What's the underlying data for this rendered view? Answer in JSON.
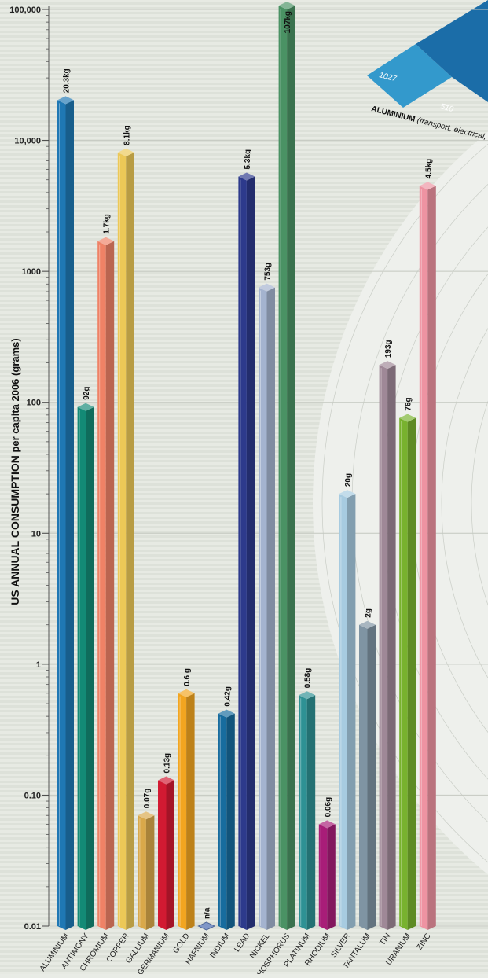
{
  "chart_data": {
    "type": "bar",
    "title": "",
    "ylabel": {
      "bold": "US ANNUAL CONSUMPTION",
      "rest": " per capita 2006 (grams)"
    },
    "xlabel": "",
    "yscale": "log",
    "ylim": [
      0.01,
      100000
    ],
    "yticks": [
      {
        "v": 100000,
        "label": "100,000"
      },
      {
        "v": 10000,
        "label": "10,000"
      },
      {
        "v": 1000,
        "label": "1000"
      },
      {
        "v": 100,
        "label": "100"
      },
      {
        "v": 10,
        "label": "10"
      },
      {
        "v": 1,
        "label": "1"
      },
      {
        "v": 0.1,
        "label": "0.10"
      },
      {
        "v": 0.01,
        "label": "0.01"
      }
    ],
    "grid": true,
    "bars": [
      {
        "category": "ALUMINIUM",
        "value": 20300,
        "label": "20.3kg",
        "color": "#1f78b4"
      },
      {
        "category": "ANTIMONY",
        "value": 92,
        "label": "92g",
        "color": "#138a76"
      },
      {
        "category": "CHROMIUM",
        "value": 1700,
        "label": "1.7kg",
        "color": "#ef8266"
      },
      {
        "category": "COPPER",
        "value": 8100,
        "label": "8.1kg",
        "color": "#ecc857"
      },
      {
        "category": "GALLIUM",
        "value": 0.07,
        "label": "0.07g",
        "color": "#d9a84a"
      },
      {
        "category": "GERMANIUM",
        "value": 0.13,
        "label": "0.13g",
        "color": "#d21a32"
      },
      {
        "category": "GOLD",
        "value": 0.6,
        "label": "0.6 g",
        "color": "#f2a520"
      },
      {
        "category": "HAFNIUM",
        "value": 0.01,
        "label": "n/a",
        "color": "#5473b4"
      },
      {
        "category": "INDIUM",
        "value": 0.42,
        "label": "0.42g",
        "color": "#176c9e"
      },
      {
        "category": "LEAD",
        "value": 5300,
        "label": "5.3kg",
        "color": "#2d3a8c"
      },
      {
        "category": "NICKEL",
        "value": 753,
        "label": "753g",
        "color": "#a4b3cf"
      },
      {
        "category": "PHOSPHORUS",
        "value": 107000,
        "label": "107kg",
        "color": "#4a9264"
      },
      {
        "category": "PLATINUM",
        "value": 0.58,
        "label": "0.58g",
        "color": "#2e9194"
      },
      {
        "category": "RHODIUM",
        "value": 0.06,
        "label": "0.06g",
        "color": "#a81d78"
      },
      {
        "category": "SILVER",
        "value": 20,
        "label": "20g",
        "color": "#a7cbe0"
      },
      {
        "category": "TANTALUM",
        "value": 2,
        "label": "2g",
        "color": "#7f94a3"
      },
      {
        "category": "TIN",
        "value": 193,
        "label": "193g",
        "color": "#9f8897"
      },
      {
        "category": "URANIUM",
        "value": 76,
        "label": "76g",
        "color": "#78b22e"
      },
      {
        "category": "ZINC",
        "value": 4500,
        "label": "4.5kg",
        "color": "#ee93a2"
      }
    ]
  },
  "overlay": {
    "values": [
      "1027",
      "510"
    ],
    "label_bold": "ALUMINIUM",
    "label_rest": " (transport, electrical, c"
  }
}
